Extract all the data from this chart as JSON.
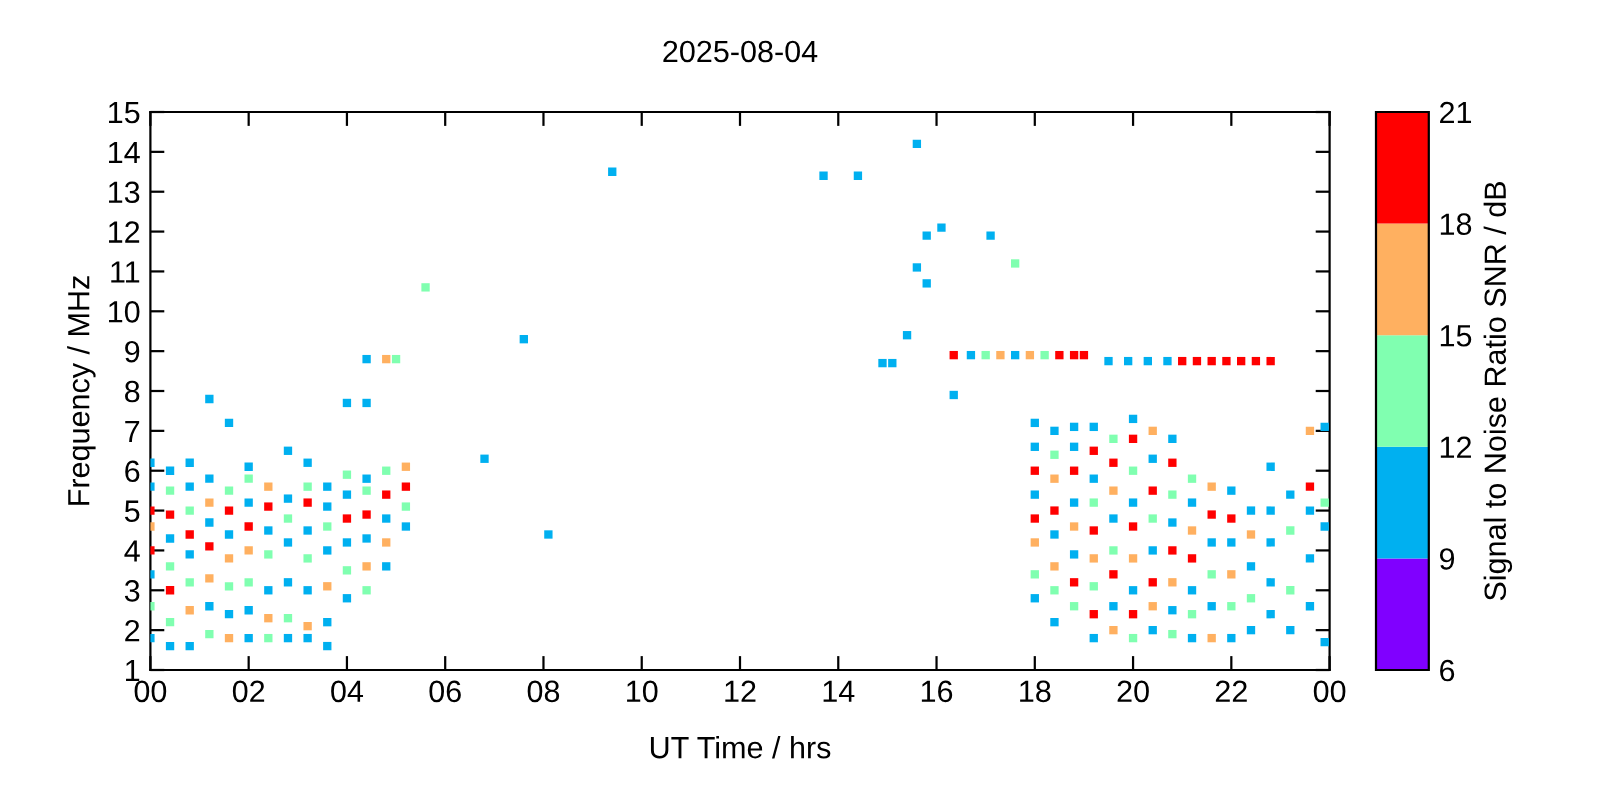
{
  "chart_data": {
    "type": "scatter",
    "title": "2025-08-04",
    "xlabel": "UT Time / hrs",
    "ylabel": "Frequency / MHz",
    "clabel": "Signal to Noise Ratio SNR / dB",
    "xlim": [
      0,
      24
    ],
    "ylim": [
      1,
      15
    ],
    "clim": [
      6,
      21
    ],
    "cticks": [
      6,
      9,
      12,
      15,
      18,
      21
    ],
    "xticks": [
      {
        "value": 0,
        "label": "00"
      },
      {
        "value": 2,
        "label": "02"
      },
      {
        "value": 4,
        "label": "04"
      },
      {
        "value": 6,
        "label": "06"
      },
      {
        "value": 8,
        "label": "08"
      },
      {
        "value": 10,
        "label": "10"
      },
      {
        "value": 12,
        "label": "12"
      },
      {
        "value": 14,
        "label": "14"
      },
      {
        "value": 16,
        "label": "16"
      },
      {
        "value": 18,
        "label": "18"
      },
      {
        "value": 20,
        "label": "20"
      },
      {
        "value": 22,
        "label": "22"
      },
      {
        "value": 24,
        "label": "00"
      }
    ],
    "yticks": [
      1,
      2,
      3,
      4,
      5,
      6,
      7,
      8,
      9,
      10,
      11,
      12,
      13,
      14,
      15
    ],
    "grid": false,
    "marker": "square",
    "series": [
      {
        "color": "#00b0f0",
        "x": [
          0,
          0,
          0,
          0,
          0.4,
          0.4,
          0.4,
          0.8,
          0.8,
          0.8,
          0.8,
          1.2,
          1.2,
          1.2,
          1.2,
          1.6,
          1.6,
          1.6,
          2.0,
          2.0,
          2.0,
          2.0,
          2.4,
          2.4,
          2.8,
          2.8,
          2.8,
          2.8,
          2.8,
          3.2,
          3.2,
          3.2,
          3.2,
          3.6,
          3.6,
          3.6,
          3.6,
          3.6,
          4.0,
          4.0,
          4.0,
          4.0,
          4.4,
          4.4,
          4.4,
          4.4,
          4.8,
          4.8,
          5.2,
          6.8,
          7.6,
          8.1,
          9.4,
          13.7,
          14.4,
          15.6,
          16.1,
          15.8,
          15.6,
          15.8,
          15.4,
          14.9,
          15.1,
          17.1,
          16.35,
          16.7,
          17.6,
          19.5,
          19.9,
          20.3,
          20.7,
          18.0,
          18.0,
          18.0,
          18.0,
          18.4,
          18.4,
          18.4,
          18.8,
          18.8,
          18.8,
          18.8,
          19.2,
          19.2,
          19.2,
          19.6,
          19.6,
          20.0,
          20.0,
          20.0,
          20.4,
          20.4,
          20.4,
          20.8,
          20.8,
          20.8,
          21.2,
          21.2,
          21.2,
          21.6,
          21.6,
          22.0,
          22.0,
          22.0,
          22.4,
          22.4,
          22.4,
          22.8,
          22.8,
          22.8,
          22.8,
          22.8,
          23.2,
          23.2,
          23.6,
          23.6,
          23.6,
          23.9,
          23.9,
          23.9
        ],
        "values": [
          1.8,
          3.4,
          5.6,
          6.2,
          1.6,
          4.3,
          6.0,
          1.6,
          3.9,
          5.6,
          6.2,
          2.6,
          4.7,
          5.8,
          7.8,
          2.4,
          4.4,
          7.2,
          1.8,
          2.5,
          5.2,
          6.1,
          3.0,
          4.5,
          1.8,
          3.2,
          4.2,
          5.3,
          6.5,
          1.8,
          3.0,
          4.5,
          6.2,
          1.6,
          2.2,
          4.0,
          5.1,
          5.6,
          2.8,
          4.2,
          5.4,
          7.7,
          4.3,
          5.8,
          7.7,
          8.8,
          3.6,
          4.8,
          4.6,
          6.3,
          9.3,
          4.4,
          13.5,
          13.4,
          13.4,
          14.2,
          12.1,
          11.9,
          11.1,
          10.7,
          9.4,
          8.7,
          8.7,
          11.9,
          7.9,
          8.9,
          8.9,
          8.75,
          8.75,
          8.75,
          8.75,
          2.8,
          5.4,
          6.6,
          7.2,
          2.2,
          4.4,
          7.0,
          3.9,
          5.2,
          6.6,
          7.1,
          1.8,
          5.8,
          7.1,
          2.6,
          4.8,
          3.0,
          5.2,
          7.3,
          2.0,
          4.0,
          6.3,
          2.5,
          4.7,
          6.8,
          1.8,
          3.0,
          5.2,
          2.6,
          4.2,
          1.8,
          4.2,
          5.5,
          2.0,
          3.6,
          5.0,
          2.4,
          3.2,
          4.2,
          5.0,
          6.1,
          2.0,
          5.4,
          2.6,
          3.8,
          5.0,
          1.7,
          4.6,
          7.1
        ]
      },
      {
        "color": "#80ffb0",
        "x": [
          0,
          0.4,
          0.4,
          0.4,
          0.8,
          0.8,
          1.2,
          1.6,
          1.6,
          2.0,
          2.0,
          2.4,
          2.4,
          2.8,
          2.8,
          3.2,
          3.2,
          3.6,
          4.0,
          4.0,
          4.4,
          4.4,
          4.8,
          5.2,
          5.0,
          5.6,
          17.6,
          17.0,
          18.2,
          18.0,
          18.4,
          18.4,
          18.8,
          19.2,
          19.2,
          19.6,
          19.6,
          20.0,
          20.0,
          20.4,
          20.8,
          20.8,
          21.2,
          21.2,
          21.6,
          22.0,
          22.4,
          23.2,
          23.2,
          23.9
        ],
        "values": [
          2.6,
          2.2,
          3.6,
          5.5,
          3.2,
          5.0,
          1.9,
          3.1,
          5.5,
          3.2,
          5.8,
          1.8,
          3.9,
          2.3,
          4.8,
          3.8,
          5.6,
          4.6,
          3.5,
          5.9,
          3.0,
          5.5,
          6.0,
          5.1,
          8.8,
          10.6,
          11.2,
          8.9,
          8.9,
          3.4,
          3.0,
          6.4,
          2.6,
          3.1,
          5.2,
          4.0,
          6.8,
          1.8,
          6.0,
          4.8,
          1.9,
          5.4,
          2.4,
          5.8,
          3.4,
          2.6,
          2.8,
          3.0,
          4.5,
          5.2
        ]
      },
      {
        "color": "#ffb060",
        "x": [
          0,
          0.8,
          1.2,
          1.2,
          1.6,
          1.6,
          2.0,
          2.4,
          2.4,
          3.2,
          3.6,
          4.4,
          4.8,
          4.8,
          5.2,
          17.3,
          17.9,
          18.0,
          18.4,
          18.4,
          18.8,
          19.2,
          19.6,
          19.6,
          20.0,
          20.4,
          20.4,
          20.8,
          21.2,
          21.6,
          21.6,
          22.0,
          22.4,
          23.6
        ],
        "values": [
          4.6,
          2.5,
          3.3,
          5.2,
          1.8,
          3.8,
          4.0,
          2.3,
          5.6,
          2.1,
          3.1,
          3.6,
          4.2,
          8.8,
          6.1,
          8.9,
          8.9,
          4.2,
          3.6,
          5.8,
          4.6,
          3.8,
          2.0,
          5.5,
          3.8,
          2.6,
          7.0,
          3.2,
          4.5,
          1.8,
          5.6,
          3.4,
          4.4,
          7.0
        ]
      },
      {
        "color": "#ff0000",
        "x": [
          0,
          0,
          0.4,
          0.4,
          0.8,
          1.2,
          1.6,
          2.0,
          2.4,
          3.2,
          4.0,
          4.4,
          4.8,
          5.2,
          16.35,
          18.5,
          18.8,
          19.0,
          21.0,
          21.3,
          21.6,
          21.9,
          22.2,
          22.5,
          22.8,
          18.0,
          18.0,
          18.4,
          18.8,
          18.8,
          19.2,
          19.2,
          19.2,
          19.6,
          19.6,
          20.0,
          20.0,
          20.0,
          20.4,
          20.4,
          20.8,
          20.8,
          21.2,
          21.6,
          22.0,
          23.6
        ],
        "values": [
          4.0,
          5.0,
          3.0,
          4.9,
          4.4,
          4.1,
          5.0,
          4.6,
          5.1,
          5.2,
          4.8,
          4.9,
          5.4,
          5.6,
          8.9,
          8.9,
          8.9,
          8.9,
          8.75,
          8.75,
          8.75,
          8.75,
          8.75,
          8.75,
          8.75,
          4.8,
          6.0,
          5.0,
          3.2,
          6.0,
          2.4,
          4.5,
          6.5,
          3.4,
          6.2,
          2.4,
          4.6,
          6.8,
          3.2,
          5.5,
          4.0,
          6.2,
          3.8,
          4.9,
          4.8,
          5.6
        ]
      }
    ]
  }
}
